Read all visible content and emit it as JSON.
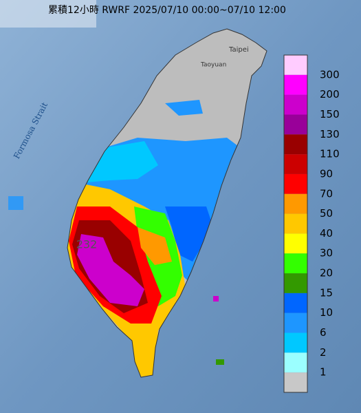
{
  "header": {
    "title": "累積12小時 RWRF 2025/07/10 00:00~07/10 12:00"
  },
  "map_labels": {
    "taipei": "Taipei",
    "taoyuan": "Taoyuan",
    "strait": "Formosa Strait",
    "max_value": "232"
  },
  "legend": {
    "colors": [
      "#ffccff",
      "#ff00ff",
      "#cc00cc",
      "#990099",
      "#990000",
      "#cc0000",
      "#ff0000",
      "#ff9900",
      "#ffc800",
      "#ffff00",
      "#33ff00",
      "#339900",
      "#0066ff",
      "#1e96ff",
      "#00c8ff",
      "#9bffff",
      "#c8c8c8"
    ],
    "labels": [
      300,
      200,
      150,
      130,
      110,
      90,
      70,
      50,
      40,
      30,
      20,
      15,
      10,
      6,
      2,
      1
    ]
  }
}
